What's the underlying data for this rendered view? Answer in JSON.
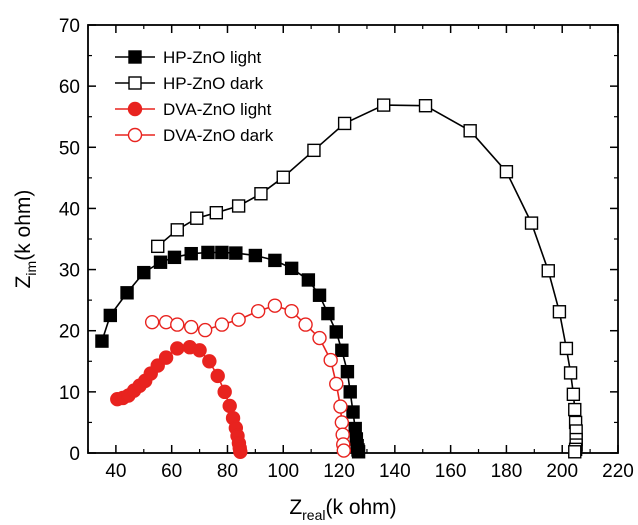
{
  "chart_data": {
    "type": "line",
    "title": "",
    "xlabel": {
      "main": "Z",
      "sub": "real",
      "unit": "(k ohm)"
    },
    "ylabel": {
      "main": "Z",
      "sub": "im",
      "unit": "(k ohm)"
    },
    "xlim": [
      30,
      220
    ],
    "ylim": [
      0,
      70
    ],
    "xticks": [
      40,
      60,
      80,
      100,
      120,
      140,
      160,
      180,
      200,
      220
    ],
    "yticks": [
      0,
      10,
      20,
      30,
      40,
      50,
      60,
      70
    ],
    "grid": false,
    "legend_position": "top-left",
    "series": [
      {
        "name": "HP-ZnO light",
        "color": "#000000",
        "marker": "square",
        "filled": true,
        "x": [
          35,
          38,
          44,
          50,
          56,
          61,
          67,
          73,
          78,
          83,
          90,
          97,
          103,
          109,
          113,
          116,
          119,
          121,
          123,
          124,
          125,
          125.8,
          126.2,
          126.5,
          126.8,
          127
        ],
        "y": [
          18.3,
          22.5,
          26.2,
          29.5,
          31.2,
          32.0,
          32.6,
          32.8,
          32.8,
          32.7,
          32.3,
          31.5,
          30.2,
          28.3,
          25.8,
          22.8,
          19.8,
          16.8,
          13.3,
          10.0,
          6.7,
          4.0,
          2.3,
          1.2,
          0.5,
          0.2
        ]
      },
      {
        "name": "HP-ZnO dark",
        "color": "#000000",
        "marker": "square",
        "filled": false,
        "x": [
          55,
          62,
          69,
          76,
          84,
          92,
          100,
          111,
          122,
          136,
          151,
          167,
          180,
          189,
          195,
          199,
          201.5,
          203,
          204,
          204.5,
          204.8,
          205,
          205,
          205,
          204.8,
          204.5
        ],
        "y": [
          33.8,
          36.5,
          38.4,
          39.3,
          40.4,
          42.4,
          45.1,
          49.5,
          53.9,
          56.9,
          56.8,
          52.7,
          46.0,
          37.6,
          29.8,
          23.1,
          17.1,
          13.1,
          9.6,
          7.1,
          5.0,
          3.6,
          2.2,
          1.3,
          0.6,
          0.2
        ]
      },
      {
        "name": "DVA-ZnO light",
        "color": "#e8231f",
        "marker": "circle",
        "filled": true,
        "x": [
          40.5,
          42.5,
          44.5,
          46.5,
          48.5,
          50.5,
          52.5,
          55,
          58,
          62,
          66.5,
          70,
          73.5,
          76.5,
          79,
          80.8,
          82,
          83,
          83.6,
          84.1,
          84.4,
          84.6
        ],
        "y": [
          8.8,
          9.0,
          9.4,
          10.2,
          11.0,
          11.8,
          13.0,
          14.3,
          15.6,
          17.1,
          17.3,
          16.8,
          15.0,
          12.6,
          10.0,
          7.7,
          5.7,
          4.1,
          2.8,
          1.6,
          0.8,
          0.2
        ]
      },
      {
        "name": "DVA-ZnO dark",
        "color": "#e8231f",
        "marker": "circle",
        "filled": false,
        "x": [
          53,
          58,
          62,
          67,
          72,
          78,
          84,
          91,
          97,
          103,
          108,
          113,
          117,
          119,
          120.5,
          121,
          121.3,
          121.5,
          121.7
        ],
        "y": [
          21.4,
          21.4,
          21.0,
          20.6,
          20.1,
          21.0,
          21.8,
          23.2,
          24.1,
          23.2,
          21.0,
          18.8,
          15.2,
          11.3,
          7.6,
          5.0,
          3.0,
          1.4,
          0.4
        ]
      }
    ]
  }
}
